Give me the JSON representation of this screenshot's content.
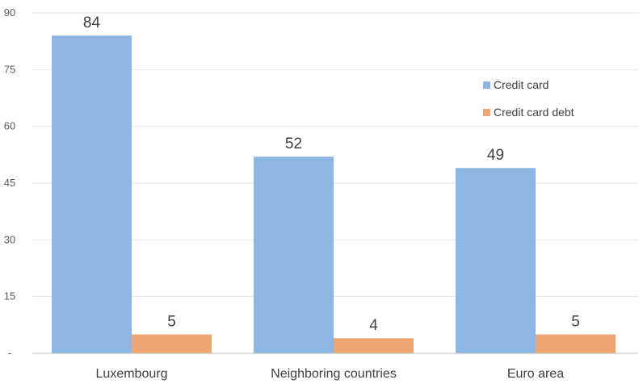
{
  "chart_data": {
    "type": "bar",
    "title": "",
    "xlabel": "",
    "ylabel": "",
    "categories": [
      "Luxembourg",
      "Neighboring countries",
      "Euro area"
    ],
    "series": [
      {
        "name": "Credit card",
        "values": [
          84,
          52,
          49
        ],
        "color": "#8db7e2"
      },
      {
        "name": "Credit card debt",
        "values": [
          5,
          4,
          5
        ],
        "color": "#f0a673"
      }
    ],
    "data_labels": [
      [
        "84",
        "52",
        "49"
      ],
      [
        "5",
        "4",
        "5"
      ]
    ],
    "ylim": [
      0,
      90
    ],
    "yticks": [
      0,
      15,
      30,
      45,
      60,
      75,
      90
    ],
    "ytick_labels": [
      "-",
      "15",
      "30",
      "45",
      "60",
      "75",
      "90"
    ],
    "grid": true,
    "legend_position": "top-right"
  }
}
